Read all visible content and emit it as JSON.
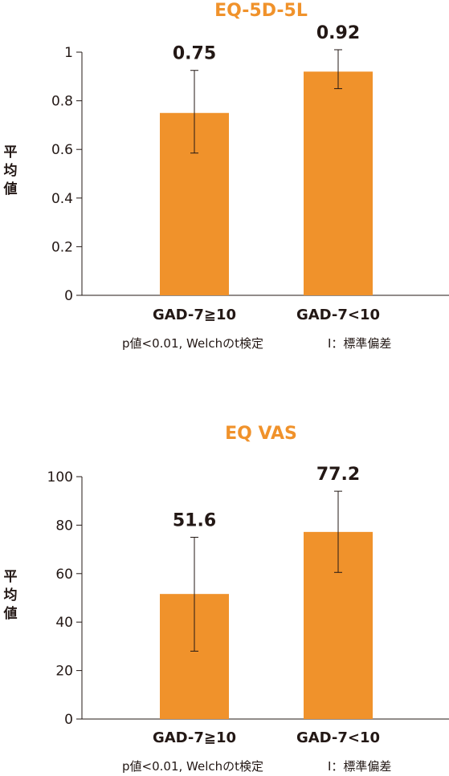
{
  "colors": {
    "bar": "#f0922b",
    "title": "#f0922b",
    "axis": "#231815",
    "error_bar": "#231815"
  },
  "chart_data": [
    {
      "type": "bar",
      "title": "EQ-5D-5L",
      "ylabel": "平均値",
      "xlabel": "",
      "categories": [
        "GAD-7≧10",
        "GAD-7<10"
      ],
      "values": [
        0.75,
        0.92
      ],
      "value_labels": [
        "0.75",
        "0.92"
      ],
      "error_low": [
        0.585,
        0.85
      ],
      "error_high": [
        0.925,
        1.01
      ],
      "ylim": [
        0,
        1
      ],
      "yticks": [
        0,
        0.2,
        0.4,
        0.6,
        0.8,
        1
      ],
      "ytick_labels": [
        "0",
        "0.2",
        "0.4",
        "0.6",
        "0.8",
        "1"
      ],
      "grid": false,
      "footnote_left": "p値<0.01, Welchのt検定",
      "footnote_right": "Ⅰ：標準偏差"
    },
    {
      "type": "bar",
      "title": "EQ VAS",
      "ylabel": "平均値",
      "xlabel": "",
      "categories": [
        "GAD-7≧10",
        "GAD-7<10"
      ],
      "values": [
        51.6,
        77.2
      ],
      "value_labels": [
        "51.6",
        "77.2"
      ],
      "error_low": [
        28,
        60.5
      ],
      "error_high": [
        75,
        94
      ],
      "ylim": [
        0,
        100
      ],
      "yticks": [
        0,
        20,
        40,
        60,
        80,
        100
      ],
      "ytick_labels": [
        "0",
        "20",
        "40",
        "60",
        "80",
        "100"
      ],
      "grid": false,
      "footnote_left": "p値<0.01, Welchのt検定",
      "footnote_right": "Ⅰ：標準偏差"
    }
  ]
}
